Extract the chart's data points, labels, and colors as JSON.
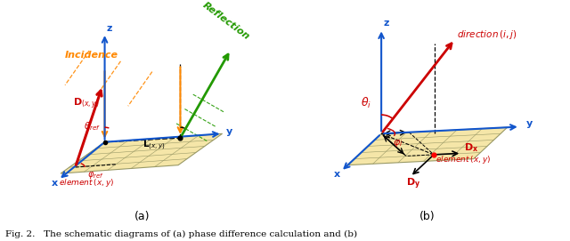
{
  "fig_width": 6.4,
  "fig_height": 2.71,
  "bg_color": "#ffffff",
  "plane_color": "#f5e6a8",
  "plane_edge_color": "#999966",
  "blue": "#1155cc",
  "orange": "#ff8800",
  "green": "#229900",
  "red": "#cc0000",
  "black": "#000000",
  "caption_a": "(a)",
  "caption_b": "(b)",
  "fig_caption": "Fig. 2.   The schematic diagrams of (a) phase difference calculation and (b)"
}
